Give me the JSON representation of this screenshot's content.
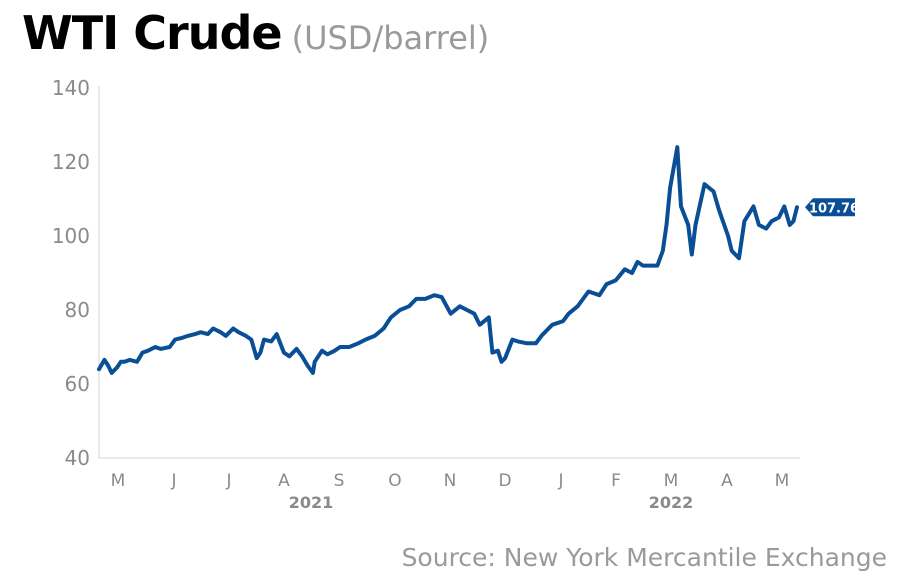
{
  "title": "WTI Crude",
  "subtitle": "(USD/barrel)",
  "source": "Source: New York Mercantile Exchange",
  "colors": {
    "line": "#0a4f96",
    "axis_text": "#8a8a8a",
    "year_text": "#8a8a8a",
    "label_bg": "#0a4f96"
  },
  "chart_data": {
    "type": "line",
    "ylim": [
      40,
      140
    ],
    "yticks": [
      40,
      60,
      80,
      100,
      120,
      140
    ],
    "month_ticks": [
      "M",
      "J",
      "J",
      "A",
      "S",
      "O",
      "N",
      "D",
      "J",
      "F",
      "M",
      "A",
      "M"
    ],
    "year_labels": [
      "2021",
      "2022"
    ],
    "end_label": "107.76",
    "series": [
      {
        "x": [
          "2021-04-23",
          "2021-04-26",
          "2021-04-28",
          "2021-04-30",
          "2021-05-03",
          "2021-05-05",
          "2021-05-07",
          "2021-05-10",
          "2021-05-14",
          "2021-05-17",
          "2021-05-20",
          "2021-05-24",
          "2021-05-27",
          "2021-06-01",
          "2021-06-04",
          "2021-06-08",
          "2021-06-11",
          "2021-06-15",
          "2021-06-18",
          "2021-06-22",
          "2021-06-25",
          "2021-06-29",
          "2021-07-02",
          "2021-07-06",
          "2021-07-09",
          "2021-07-13",
          "2021-07-16",
          "2021-07-19",
          "2021-07-21",
          "2021-07-23",
          "2021-07-27",
          "2021-07-30",
          "2021-08-03",
          "2021-08-06",
          "2021-08-10",
          "2021-08-13",
          "2021-08-16",
          "2021-08-19",
          "2021-08-20",
          "2021-08-24",
          "2021-08-27",
          "2021-08-31",
          "2021-09-03",
          "2021-09-08",
          "2021-09-13",
          "2021-09-17",
          "2021-09-22",
          "2021-09-27",
          "2021-10-01",
          "2021-10-06",
          "2021-10-11",
          "2021-10-15",
          "2021-10-20",
          "2021-10-25",
          "2021-10-29",
          "2021-11-03",
          "2021-11-08",
          "2021-11-12",
          "2021-11-16",
          "2021-11-19",
          "2021-11-24",
          "2021-11-26",
          "2021-11-29",
          "2021-12-01",
          "2021-12-03",
          "2021-12-07",
          "2021-12-10",
          "2021-12-15",
          "2021-12-20",
          "2021-12-23",
          "2021-12-29",
          "2022-01-04",
          "2022-01-07",
          "2022-01-12",
          "2022-01-18",
          "2022-01-24",
          "2022-01-28",
          "2022-02-02",
          "2022-02-07",
          "2022-02-11",
          "2022-02-14",
          "2022-02-17",
          "2022-02-22",
          "2022-02-25",
          "2022-02-28",
          "2022-03-02",
          "2022-03-04",
          "2022-03-08",
          "2022-03-10",
          "2022-03-14",
          "2022-03-16",
          "2022-03-18",
          "2022-03-23",
          "2022-03-28",
          "2022-03-31",
          "2022-04-05",
          "2022-04-07",
          "2022-04-11",
          "2022-04-14",
          "2022-04-19",
          "2022-04-22",
          "2022-04-26",
          "2022-04-29",
          "2022-05-03",
          "2022-05-06",
          "2022-05-09",
          "2022-05-11",
          "2022-05-13"
        ],
        "values": [
          64,
          66.5,
          65,
          63,
          64.5,
          66,
          66,
          66.5,
          66,
          68.5,
          69,
          70,
          69.5,
          70,
          72,
          72.5,
          73,
          73.5,
          74,
          73.5,
          75,
          74,
          73,
          75,
          74,
          73,
          72,
          67,
          68.5,
          72,
          71.5,
          73.5,
          68.5,
          67.5,
          69.5,
          67.5,
          65,
          63,
          66,
          69,
          68,
          69,
          70,
          70,
          71,
          72,
          73,
          75,
          78,
          80,
          81,
          83,
          83,
          84,
          83.5,
          79,
          81,
          80,
          79,
          76,
          78,
          68.5,
          69,
          66,
          67,
          72,
          71.5,
          71,
          71,
          73,
          76,
          77,
          79,
          81,
          85,
          84,
          87,
          88,
          91,
          90,
          93,
          92,
          92,
          92,
          96,
          103,
          113,
          124,
          108,
          103,
          95,
          103,
          114,
          112,
          107,
          100,
          96,
          94,
          104,
          108,
          103,
          102,
          104,
          105,
          108,
          103,
          104,
          107.76
        ]
      }
    ]
  }
}
